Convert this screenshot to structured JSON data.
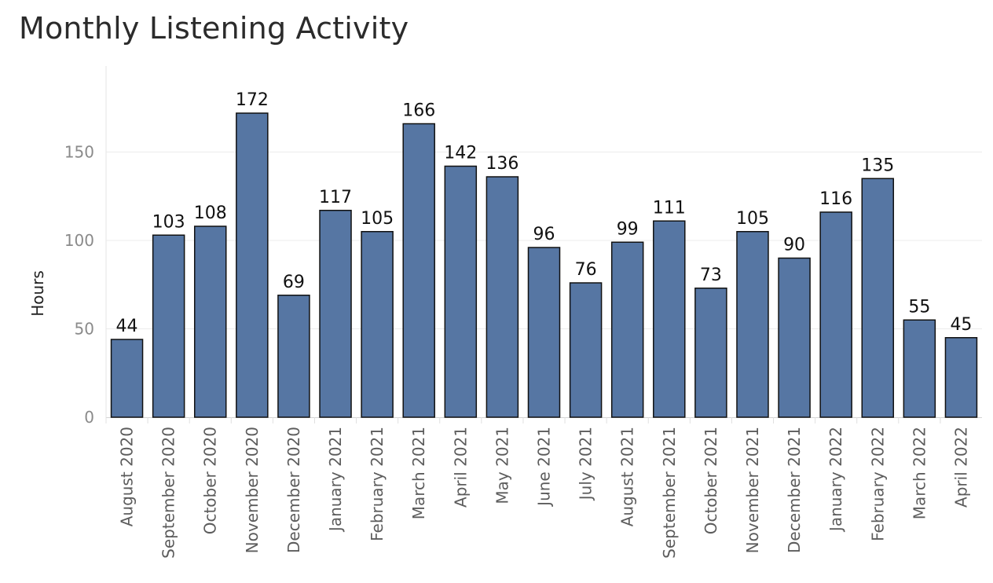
{
  "chart_data": {
    "type": "bar",
    "title": "Monthly Listening Activity",
    "xlabel": "",
    "ylabel": "Hours",
    "ylim": [
      0,
      185
    ],
    "yticks": [
      0,
      50,
      100,
      150
    ],
    "grid": true,
    "bar_color": "#5676a3",
    "categories": [
      "August 2020",
      "September 2020",
      "October 2020",
      "November 2020",
      "December 2020",
      "January 2021",
      "February 2021",
      "March 2021",
      "April 2021",
      "May 2021",
      "June 2021",
      "July 2021",
      "August 2021",
      "September 2021",
      "October 2021",
      "November 2021",
      "December 2021",
      "January 2022",
      "February 2022",
      "March 2022",
      "April 2022"
    ],
    "values": [
      44,
      103,
      108,
      172,
      69,
      117,
      105,
      166,
      142,
      136,
      96,
      76,
      99,
      111,
      73,
      105,
      90,
      116,
      135,
      55,
      45
    ]
  }
}
